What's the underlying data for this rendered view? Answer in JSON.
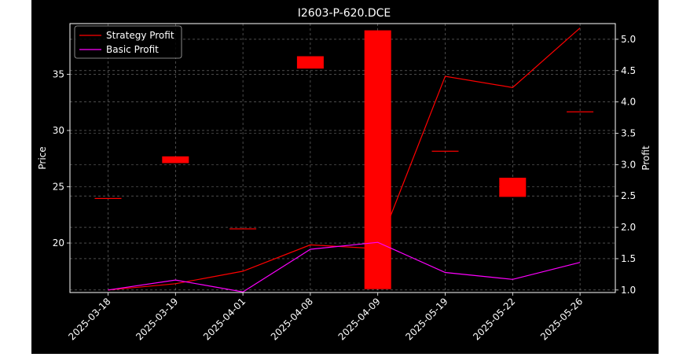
{
  "chart_data": {
    "type": "candlestick-with-line",
    "title": "I2603-P-620.DCE",
    "categories": [
      "2025-03-18",
      "2025-03-19",
      "2025-04-01",
      "2025-04-08",
      "2025-04-09",
      "2025-05-19",
      "2025-05-22",
      "2025-05-26"
    ],
    "left_axis": {
      "label": "Price",
      "ylim": [
        15.6,
        39.5
      ],
      "ticks": [
        20,
        25,
        30,
        35
      ]
    },
    "right_axis": {
      "label": "Profit",
      "ylim": [
        0.96,
        5.25
      ],
      "ticks": [
        1.0,
        1.5,
        2.0,
        2.5,
        3.0,
        3.5,
        4.0,
        4.5,
        5.0
      ]
    },
    "candles": [
      {
        "date": "2025-03-18",
        "open": 24.0,
        "close": 24.0
      },
      {
        "date": "2025-03-19",
        "open": 27.1,
        "close": 27.7
      },
      {
        "date": "2025-04-01",
        "open": 21.3,
        "close": 21.3
      },
      {
        "date": "2025-04-08",
        "open": 35.5,
        "close": 36.6
      },
      {
        "date": "2025-04-09",
        "open": 15.9,
        "close": 38.9
      },
      {
        "date": "2025-05-19",
        "open": 28.2,
        "close": 28.2
      },
      {
        "date": "2025-05-22",
        "open": 24.1,
        "close": 25.8
      },
      {
        "date": "2025-05-26",
        "open": 31.7,
        "close": 31.7
      }
    ],
    "series": [
      {
        "name": "Strategy Profit",
        "axis": "right",
        "color": "#ff0000",
        "values": [
          1.0,
          1.1,
          1.3,
          1.72,
          1.66,
          4.41,
          4.23,
          5.18
        ]
      },
      {
        "name": "Basic Profit",
        "axis": "right",
        "color": "#ff00ff",
        "values": [
          1.0,
          1.16,
          0.97,
          1.65,
          1.76,
          1.28,
          1.17,
          1.44
        ]
      }
    ],
    "candle_color": "#ff0000",
    "grid": true,
    "legend": "top-left",
    "background": "#000000",
    "foreground": "#ffffff"
  }
}
